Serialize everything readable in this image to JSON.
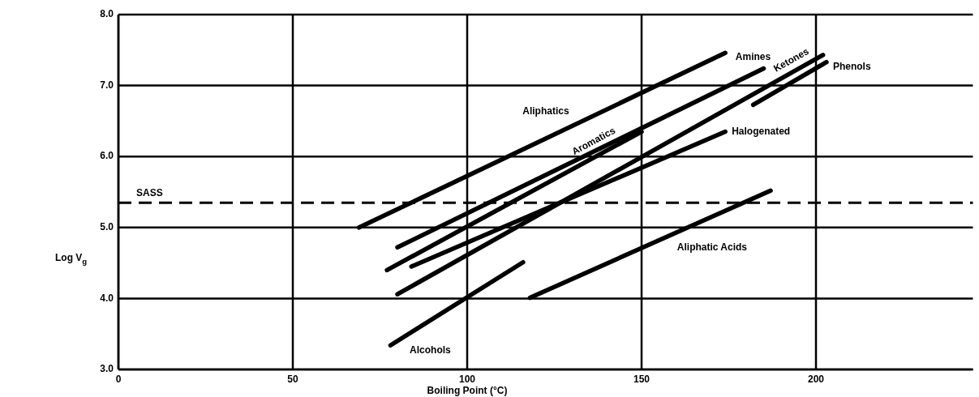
{
  "chart_data": {
    "type": "line",
    "xlabel": "Boiling Point (°C)",
    "ylabel": "Log V$_{g}$",
    "xlim": [
      0,
      245
    ],
    "ylim": [
      3,
      8
    ],
    "xticks": [
      0,
      50,
      100,
      150,
      200
    ],
    "yticks": [
      {
        "value": 3,
        "label": "3.0"
      },
      {
        "value": 4,
        "label": "4.0"
      },
      {
        "value": 5,
        "label": "5.0"
      },
      {
        "value": 6,
        "label": "6.0"
      },
      {
        "value": 7,
        "label": "7.0"
      },
      {
        "value": 8,
        "label": "8.0"
      }
    ],
    "grid": true,
    "marker": "none",
    "line_style": "solid",
    "ref_lines": [
      {
        "axis": "y",
        "value": 5.35,
        "label": "SASS",
        "line_style": "dashed",
        "color": "#000000"
      }
    ],
    "series": [
      {
        "name": "Aliphatics",
        "color": "#000000",
        "x": [
          69,
          174
        ],
        "values": [
          5.0,
          7.46
        ]
      },
      {
        "name": "Amines",
        "color": "#000000",
        "x": [
          80,
          185
        ],
        "values": [
          4.72,
          7.24
        ]
      },
      {
        "name": "Aromatics",
        "color": "#000000",
        "x": [
          77,
          150
        ],
        "values": [
          4.4,
          6.35
        ]
      },
      {
        "name": "Ketones",
        "color": "#000000",
        "x": [
          80,
          202
        ],
        "values": [
          4.06,
          7.43
        ]
      },
      {
        "name": "Halogenated",
        "color": "#000000",
        "x": [
          84,
          174
        ],
        "values": [
          4.45,
          6.35
        ]
      },
      {
        "name": "Phenols",
        "color": "#000000",
        "x": [
          182,
          203
        ],
        "values": [
          6.73,
          7.33
        ]
      },
      {
        "name": "Alcohols",
        "color": "#000000",
        "x": [
          78,
          116
        ],
        "values": [
          3.34,
          4.51
        ]
      },
      {
        "name": "Aliphatic Acids",
        "color": "#000000",
        "x": [
          118,
          187
        ],
        "values": [
          4.01,
          5.52
        ]
      }
    ]
  }
}
